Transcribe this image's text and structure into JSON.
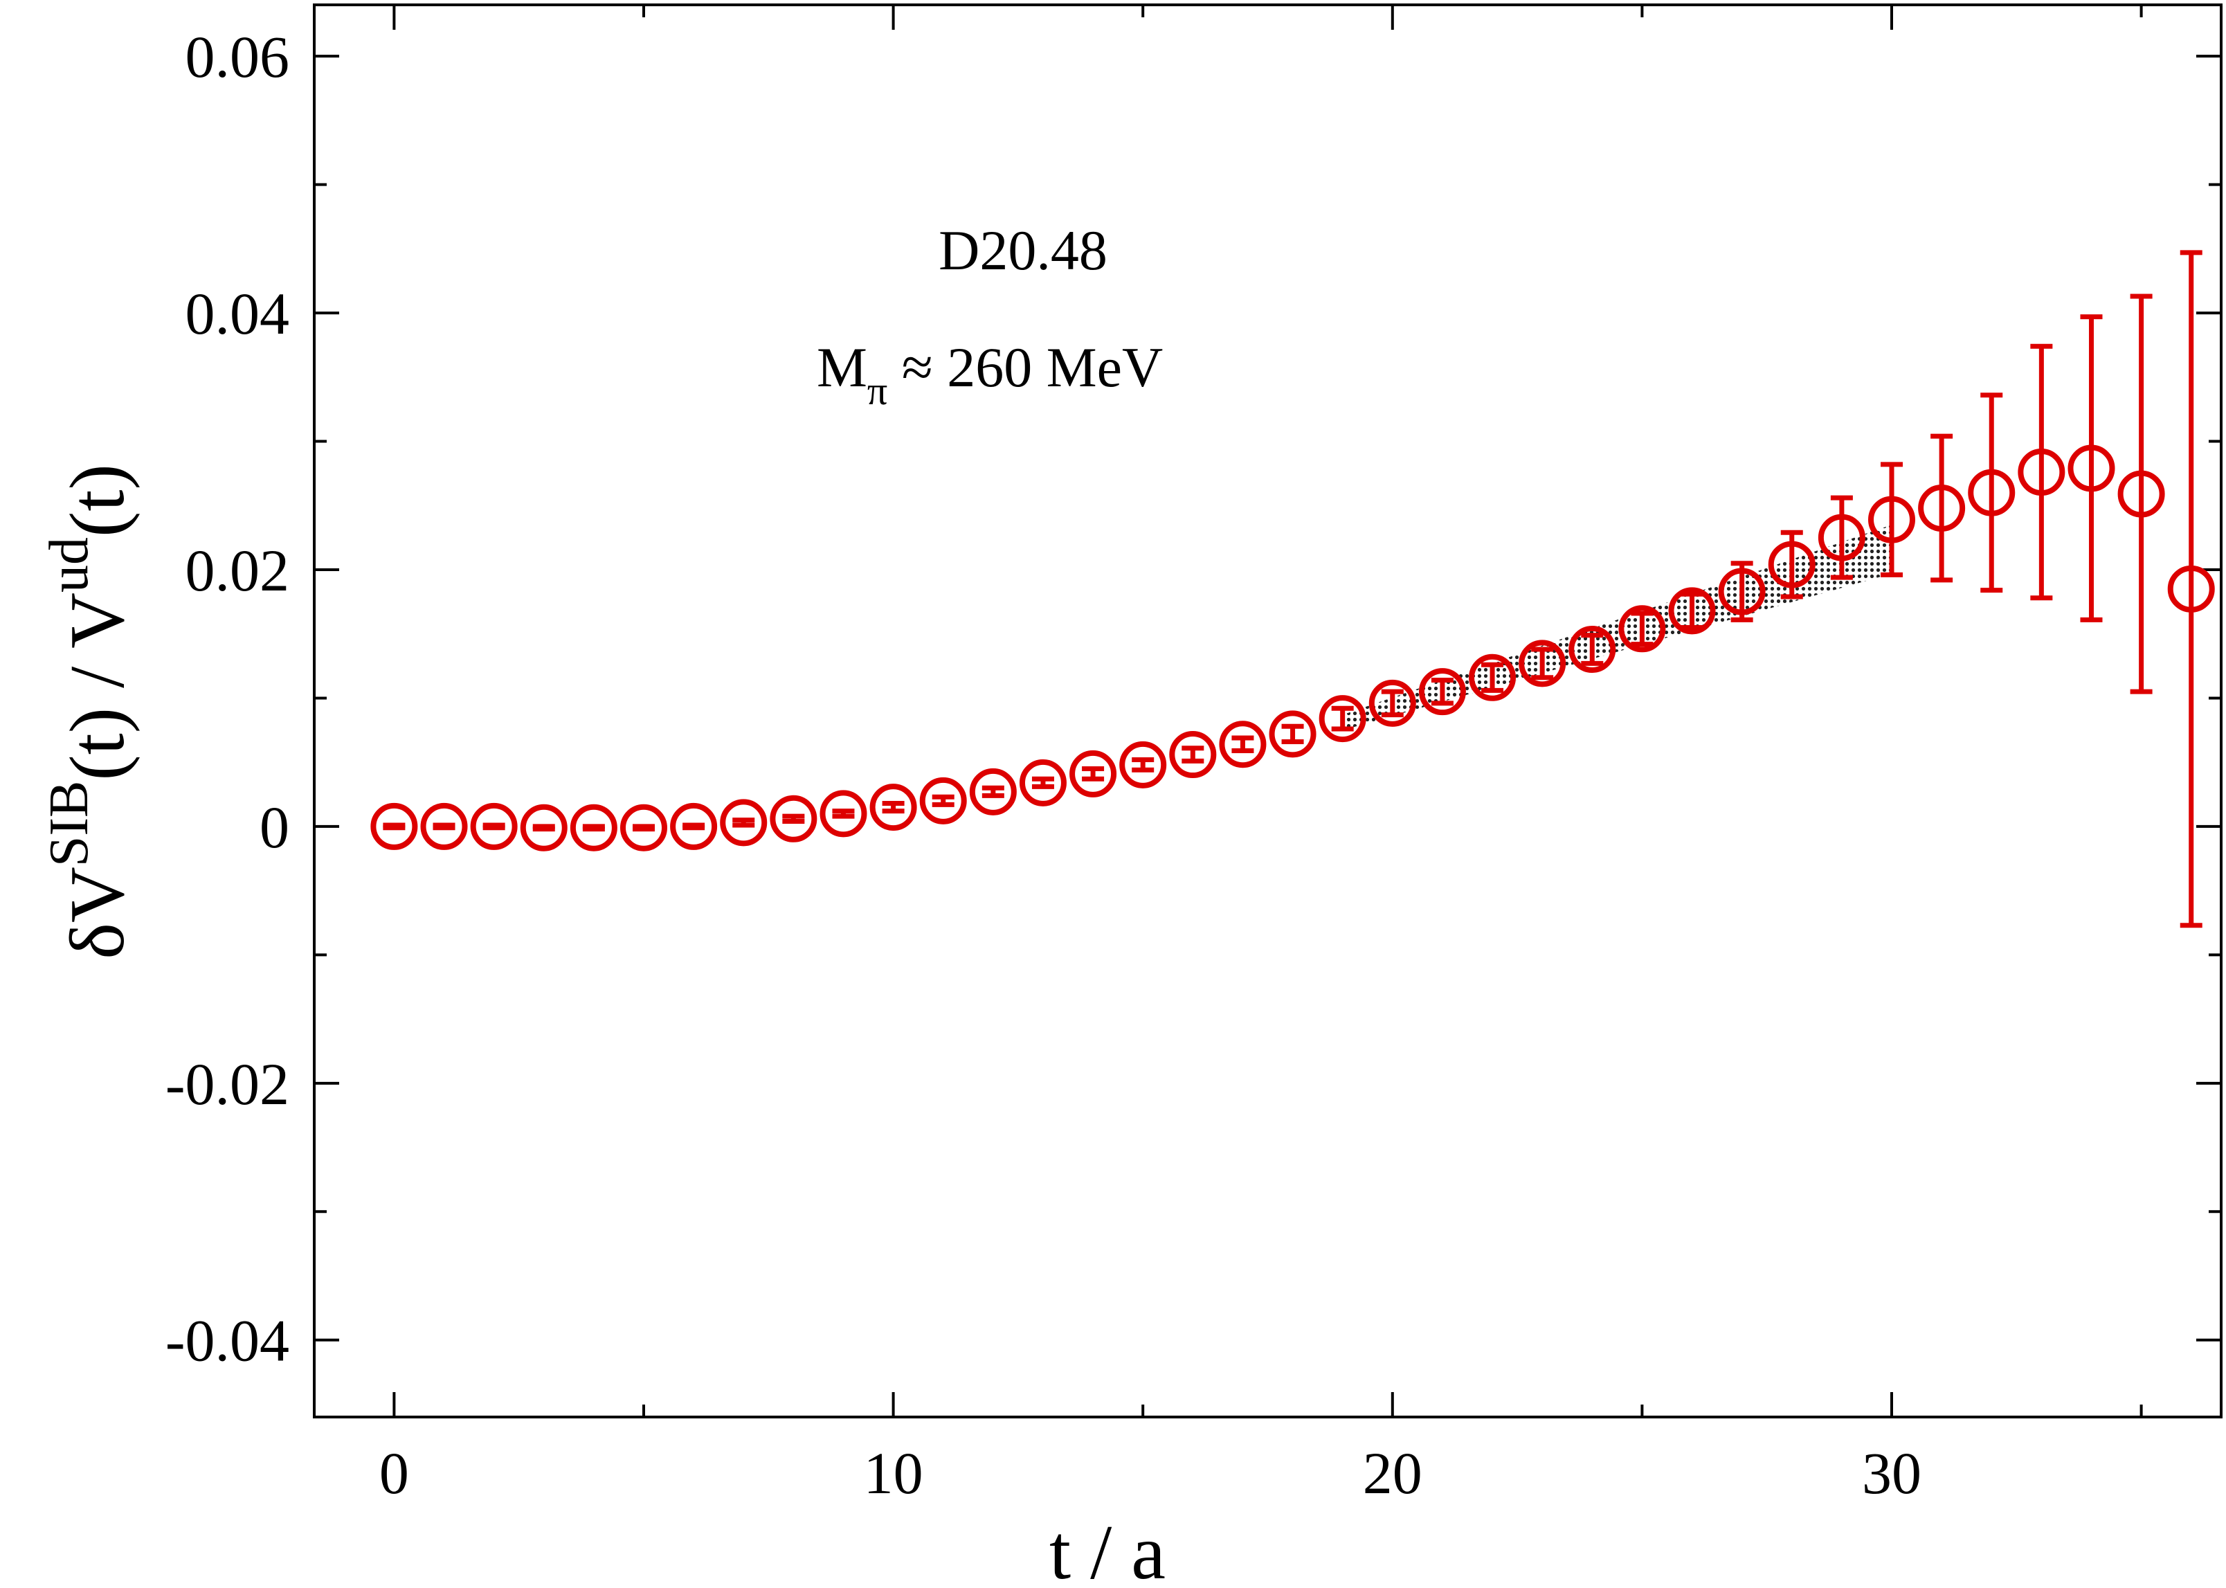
{
  "chart_data": {
    "type": "scatter",
    "title": "",
    "xlabel": "t / a",
    "ylabel": {
      "base1": "δV",
      "sup1": "SIB",
      "mid": "(t) / V",
      "sup2": "ud",
      "end": "(t)"
    },
    "xlim": [
      -1.6,
      36.6
    ],
    "ylim": [
      -0.046,
      0.064
    ],
    "x_ticks": [
      0,
      10,
      20,
      30
    ],
    "x_tick_labels": [
      "0",
      "10",
      "20",
      "30"
    ],
    "y_ticks": [
      -0.04,
      -0.02,
      0,
      0.02,
      0.04,
      0.06
    ],
    "y_tick_labels": [
      "-0.04",
      "-0.02",
      "0",
      "0.02",
      "0.04",
      "0.06"
    ],
    "grid": false,
    "annotations": {
      "ensemble": "D20.48",
      "mass_base": "M",
      "mass_sub": "π",
      "mass_rest": " ≈ 260 MeV"
    },
    "series": [
      {
        "marker": "open-circle",
        "color": "#dd0000",
        "x": [
          0,
          1,
          2,
          3,
          4,
          5,
          6,
          7,
          8,
          9,
          10,
          11,
          12,
          13,
          14,
          15,
          16,
          17,
          18,
          19,
          20,
          21,
          22,
          23,
          24,
          25,
          26,
          27,
          28,
          29,
          30,
          31,
          32,
          33,
          34,
          35,
          36
        ],
        "y": [
          0.0,
          0.0,
          0.0,
          -0.0001,
          -0.0001,
          -0.0001,
          0.0,
          0.0003,
          0.0006,
          0.001,
          0.0015,
          0.002,
          0.0027,
          0.0034,
          0.0041,
          0.0048,
          0.0056,
          0.0064,
          0.0072,
          0.0084,
          0.0096,
          0.0105,
          0.0116,
          0.0127,
          0.0138,
          0.0154,
          0.0168,
          0.0183,
          0.0204,
          0.0225,
          0.0239,
          0.0248,
          0.026,
          0.0276,
          0.0279,
          0.0259,
          0.0185
        ],
        "yerr": [
          0.0001,
          0.0001,
          0.0001,
          0.0001,
          0.0001,
          0.0001,
          0.0001,
          0.0002,
          0.0002,
          0.0002,
          0.0003,
          0.0003,
          0.0003,
          0.0003,
          0.0004,
          0.0004,
          0.0005,
          0.0005,
          0.0006,
          0.0008,
          0.0009,
          0.0009,
          0.001,
          0.0011,
          0.0011,
          0.0012,
          0.0013,
          0.0022,
          0.0025,
          0.0031,
          0.0043,
          0.0056,
          0.0076,
          0.0098,
          0.0118,
          0.0154,
          0.0262
        ]
      }
    ],
    "band": {
      "color": "#000000",
      "pattern": "dotted",
      "x": [
        19,
        30
      ],
      "upper": [
        0.0087,
        0.0235
      ],
      "lower": [
        0.0075,
        0.0197
      ]
    }
  }
}
